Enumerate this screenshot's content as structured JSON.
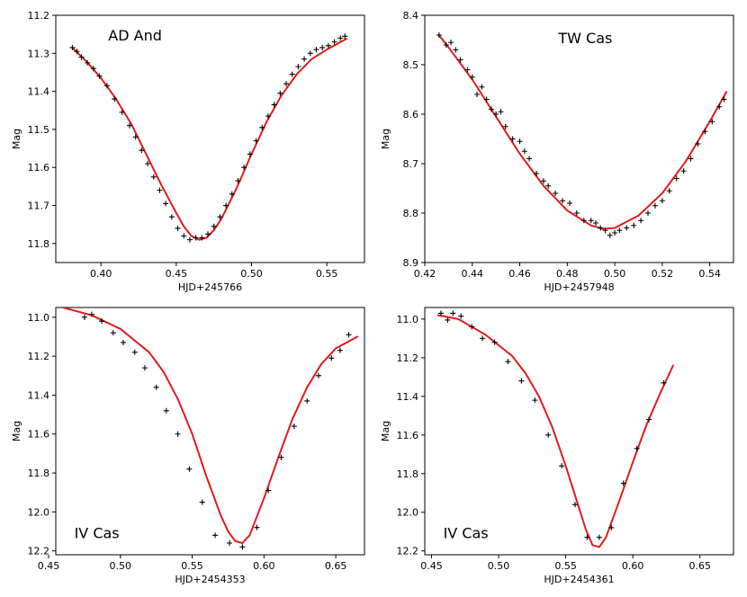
{
  "colors": {
    "fit": "#e31a1c",
    "points": "#000000",
    "frame": "#000000"
  },
  "chart_data": [
    {
      "type": "scatter",
      "title": "AD And",
      "xlabel": "HJD+245766",
      "ylabel": "Mag",
      "xlim": [
        0.37,
        0.575
      ],
      "ylim": [
        11.2,
        11.85
      ],
      "y_inverted": false,
      "xticks": [
        0.4,
        0.45,
        0.5,
        0.55
      ],
      "xtick_labels": [
        "0.40",
        "0.45",
        "0.50",
        "0.55"
      ],
      "yticks": [
        11.2,
        11.3,
        11.4,
        11.5,
        11.6,
        11.7,
        11.8
      ],
      "ytick_labels": [
        "11.2",
        "11.3",
        "11.4",
        "11.5",
        "11.6",
        "11.7",
        "11.8"
      ],
      "title_position": "top-left",
      "series": [
        {
          "name": "observations",
          "kind": "scatter",
          "marker": "+",
          "x": [
            0.381,
            0.384,
            0.387,
            0.391,
            0.395,
            0.399,
            0.404,
            0.409,
            0.414,
            0.419,
            0.423,
            0.427,
            0.431,
            0.435,
            0.439,
            0.443,
            0.447,
            0.451,
            0.455,
            0.459,
            0.463,
            0.467,
            0.471,
            0.475,
            0.479,
            0.483,
            0.487,
            0.491,
            0.495,
            0.499,
            0.503,
            0.507,
            0.511,
            0.515,
            0.519,
            0.523,
            0.527,
            0.531,
            0.535,
            0.539,
            0.543,
            0.547,
            0.551,
            0.555,
            0.559,
            0.562
          ],
          "y": [
            11.285,
            11.295,
            11.31,
            11.325,
            11.34,
            11.36,
            11.385,
            11.42,
            11.455,
            11.49,
            11.52,
            11.555,
            11.59,
            11.625,
            11.66,
            11.695,
            11.73,
            11.76,
            11.78,
            11.79,
            11.785,
            11.785,
            11.775,
            11.755,
            11.73,
            11.7,
            11.67,
            11.635,
            11.6,
            11.565,
            11.53,
            11.495,
            11.465,
            11.435,
            11.405,
            11.38,
            11.355,
            11.335,
            11.315,
            11.3,
            11.29,
            11.285,
            11.28,
            11.27,
            11.26,
            11.255
          ]
        },
        {
          "name": "fit",
          "kind": "line",
          "x": [
            0.381,
            0.39,
            0.4,
            0.41,
            0.42,
            0.43,
            0.44,
            0.45,
            0.455,
            0.46,
            0.465,
            0.47,
            0.475,
            0.48,
            0.49,
            0.5,
            0.51,
            0.52,
            0.53,
            0.54,
            0.55,
            0.563
          ],
          "y": [
            11.285,
            11.32,
            11.365,
            11.42,
            11.485,
            11.565,
            11.645,
            11.72,
            11.755,
            11.78,
            11.79,
            11.785,
            11.765,
            11.735,
            11.655,
            11.565,
            11.48,
            11.41,
            11.355,
            11.315,
            11.29,
            11.262
          ]
        }
      ]
    },
    {
      "type": "scatter",
      "title": "TW Cas",
      "xlabel": "HJD+2457948",
      "ylabel": "Mag",
      "xlim": [
        0.42,
        0.55
      ],
      "ylim": [
        8.4,
        8.9
      ],
      "y_inverted": false,
      "xticks": [
        0.42,
        0.44,
        0.46,
        0.48,
        0.5,
        0.52,
        0.54
      ],
      "xtick_labels": [
        "0.42",
        "0.44",
        "0.46",
        "0.48",
        "0.50",
        "0.52",
        "0.54"
      ],
      "yticks": [
        8.4,
        8.5,
        8.6,
        8.7,
        8.8,
        8.9
      ],
      "ytick_labels": [
        "8.4",
        "8.5",
        "8.6",
        "8.7",
        "8.8",
        "8.9"
      ],
      "title_position": "top-center",
      "series": [
        {
          "name": "observations",
          "kind": "scatter",
          "marker": "+",
          "x": [
            0.426,
            0.429,
            0.431,
            0.433,
            0.435,
            0.438,
            0.44,
            0.442,
            0.444,
            0.446,
            0.448,
            0.45,
            0.452,
            0.454,
            0.457,
            0.46,
            0.462,
            0.464,
            0.467,
            0.47,
            0.472,
            0.475,
            0.478,
            0.481,
            0.484,
            0.487,
            0.49,
            0.492,
            0.494,
            0.496,
            0.498,
            0.5,
            0.502,
            0.505,
            0.508,
            0.511,
            0.514,
            0.517,
            0.52,
            0.523,
            0.526,
            0.529,
            0.532,
            0.535,
            0.538,
            0.541,
            0.544,
            0.546
          ],
          "y": [
            8.44,
            8.46,
            8.455,
            8.47,
            8.49,
            8.51,
            8.525,
            8.56,
            8.545,
            8.57,
            8.59,
            8.6,
            8.595,
            8.625,
            8.65,
            8.655,
            8.675,
            8.69,
            8.72,
            8.735,
            8.745,
            8.76,
            8.775,
            8.78,
            8.8,
            8.815,
            8.815,
            8.82,
            8.83,
            8.835,
            8.845,
            8.84,
            8.835,
            8.83,
            8.825,
            8.815,
            8.8,
            8.785,
            8.775,
            8.755,
            8.73,
            8.715,
            8.69,
            8.66,
            8.635,
            8.615,
            8.585,
            8.57
          ]
        },
        {
          "name": "fit",
          "kind": "line",
          "x": [
            0.426,
            0.43,
            0.44,
            0.45,
            0.46,
            0.47,
            0.48,
            0.49,
            0.495,
            0.5,
            0.51,
            0.52,
            0.53,
            0.54,
            0.547
          ],
          "y": [
            8.44,
            8.465,
            8.53,
            8.605,
            8.68,
            8.745,
            8.795,
            8.825,
            8.832,
            8.83,
            8.805,
            8.76,
            8.695,
            8.615,
            8.555
          ]
        }
      ]
    },
    {
      "type": "scatter",
      "title": "IV Cas",
      "xlabel": "HJD+2454353",
      "ylabel": "Mag",
      "xlim": [
        0.455,
        0.67
      ],
      "ylim": [
        10.95,
        12.22
      ],
      "y_inverted": false,
      "xticks": [
        0.45,
        0.5,
        0.55,
        0.6,
        0.65
      ],
      "xtick_labels": [
        "0.45",
        "0.50",
        "0.55",
        "0.60",
        "0.65"
      ],
      "yticks": [
        11.0,
        11.2,
        11.4,
        11.6,
        11.8,
        12.0,
        12.2
      ],
      "ytick_labels": [
        "11.0",
        "11.2",
        "11.4",
        "11.6",
        "11.8",
        "12.0",
        "12.2"
      ],
      "title_position": "bottom-left",
      "series": [
        {
          "name": "observations",
          "kind": "scatter",
          "marker": "+",
          "x": [
            0.475,
            0.48,
            0.487,
            0.495,
            0.502,
            0.51,
            0.517,
            0.525,
            0.532,
            0.54,
            0.548,
            0.557,
            0.566,
            0.576,
            0.585,
            0.595,
            0.603,
            0.612,
            0.621,
            0.63,
            0.638,
            0.647,
            0.653,
            0.659
          ],
          "y": [
            11.0,
            10.985,
            11.02,
            11.08,
            11.13,
            11.18,
            11.26,
            11.36,
            11.48,
            11.6,
            11.78,
            11.95,
            12.12,
            12.16,
            12.18,
            12.08,
            11.89,
            11.72,
            11.56,
            11.43,
            11.3,
            11.21,
            11.17,
            11.09
          ]
        },
        {
          "name": "fit",
          "kind": "line",
          "x": [
            0.46,
            0.48,
            0.5,
            0.52,
            0.53,
            0.54,
            0.55,
            0.56,
            0.57,
            0.575,
            0.58,
            0.585,
            0.59,
            0.6,
            0.61,
            0.62,
            0.63,
            0.64,
            0.65,
            0.665
          ],
          "y": [
            10.95,
            10.99,
            11.06,
            11.18,
            11.28,
            11.42,
            11.6,
            11.82,
            12.02,
            12.1,
            12.15,
            12.16,
            12.12,
            11.93,
            11.72,
            11.52,
            11.36,
            11.24,
            11.16,
            11.1
          ]
        }
      ]
    },
    {
      "type": "scatter",
      "title": "IV Cas",
      "xlabel": "HJD+2454361",
      "ylabel": "Mag",
      "xlim": [
        0.445,
        0.675
      ],
      "ylim": [
        10.94,
        12.22
      ],
      "y_inverted": false,
      "xticks": [
        0.45,
        0.5,
        0.55,
        0.6,
        0.65
      ],
      "xtick_labels": [
        "0.45",
        "0.50",
        "0.55",
        "0.60",
        "0.65"
      ],
      "yticks": [
        11.0,
        11.2,
        11.4,
        11.6,
        11.8,
        12.0,
        12.2
      ],
      "ytick_labels": [
        "11.0",
        "11.2",
        "11.4",
        "11.6",
        "11.8",
        "12.0",
        "12.2"
      ],
      "title_position": "bottom-left",
      "series": [
        {
          "name": "observations",
          "kind": "scatter",
          "marker": "+",
          "x": [
            0.457,
            0.462,
            0.466,
            0.472,
            0.48,
            0.488,
            0.497,
            0.507,
            0.517,
            0.527,
            0.537,
            0.547,
            0.557,
            0.566,
            0.575,
            0.584,
            0.593,
            0.603,
            0.612,
            0.623
          ],
          "y": [
            10.97,
            11.005,
            10.97,
            10.985,
            11.04,
            11.1,
            11.12,
            11.22,
            11.32,
            11.42,
            11.6,
            11.76,
            11.96,
            12.13,
            12.13,
            12.08,
            11.85,
            11.67,
            11.52,
            11.33
          ]
        },
        {
          "name": "fit",
          "kind": "line",
          "x": [
            0.455,
            0.47,
            0.49,
            0.51,
            0.52,
            0.53,
            0.54,
            0.55,
            0.56,
            0.565,
            0.57,
            0.575,
            0.58,
            0.59,
            0.6,
            0.61,
            0.62,
            0.63
          ],
          "y": [
            10.98,
            11.0,
            11.08,
            11.19,
            11.28,
            11.4,
            11.56,
            11.76,
            11.98,
            12.09,
            12.17,
            12.18,
            12.13,
            11.94,
            11.74,
            11.55,
            11.39,
            11.24
          ]
        }
      ]
    }
  ]
}
